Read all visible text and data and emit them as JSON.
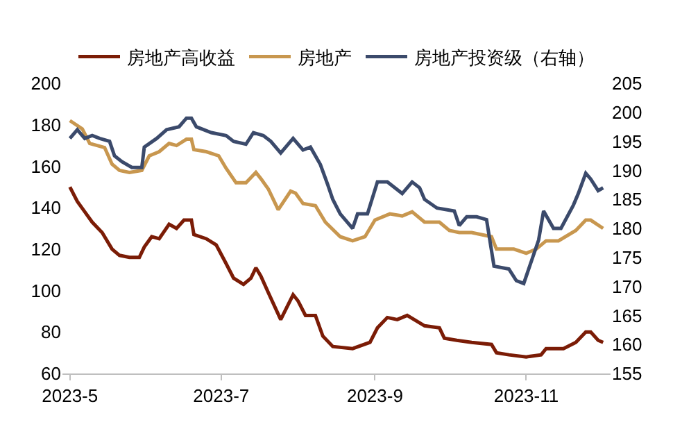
{
  "chart_data": {
    "type": "line",
    "legend": "top",
    "marker": "none",
    "line_style": "solid",
    "xlim": [
      "2023-04-28",
      "2023-12-05"
    ],
    "xticks": [
      {
        "value": "2023-05-01",
        "label": "2023-5"
      },
      {
        "value": "2023-07-01",
        "label": "2023-7"
      },
      {
        "value": "2023-09-01",
        "label": "2023-9"
      },
      {
        "value": "2023-11-01",
        "label": "2023-11"
      }
    ],
    "ylim": [
      60,
      200
    ],
    "yticks": [
      60,
      80,
      100,
      120,
      140,
      160,
      180,
      200
    ],
    "y2lim": [
      155,
      205
    ],
    "y2ticks": [
      155,
      160,
      165,
      170,
      175,
      180,
      185,
      190,
      195,
      200,
      205
    ],
    "series": [
      {
        "name": "房地产高收益",
        "color": "#7b1c06",
        "x": [
          "2023-05-01",
          "2023-05-04",
          "2023-05-07",
          "2023-05-10",
          "2023-05-14",
          "2023-05-18",
          "2023-05-21",
          "2023-05-25",
          "2023-05-29",
          "2023-05-31",
          "2023-06-03",
          "2023-06-06",
          "2023-06-10",
          "2023-06-13",
          "2023-06-16",
          "2023-06-19",
          "2023-06-20",
          "2023-06-25",
          "2023-06-29",
          "2023-07-03",
          "2023-07-06",
          "2023-07-10",
          "2023-07-13",
          "2023-07-15",
          "2023-07-17",
          "2023-07-20",
          "2023-07-25",
          "2023-07-30",
          "2023-08-01",
          "2023-08-04",
          "2023-08-08",
          "2023-08-11",
          "2023-08-15",
          "2023-08-23",
          "2023-08-30",
          "2023-09-02",
          "2023-09-06",
          "2023-09-10",
          "2023-09-14",
          "2023-09-21",
          "2023-09-27",
          "2023-09-29",
          "2023-10-04",
          "2023-10-10",
          "2023-10-18",
          "2023-10-20",
          "2023-10-25",
          "2023-11-01",
          "2023-11-07",
          "2023-11-09",
          "2023-11-16",
          "2023-11-21",
          "2023-11-25",
          "2023-11-27",
          "2023-11-30",
          "2023-12-02"
        ],
        "values": [
          150,
          143,
          138,
          133,
          128,
          120,
          117,
          116,
          116,
          121,
          126,
          125,
          132,
          130,
          134,
          134,
          127,
          125,
          122,
          113,
          106,
          103,
          106,
          111,
          107,
          99,
          86,
          98,
          95,
          88,
          88,
          78,
          73,
          72,
          75,
          82,
          87,
          86,
          88,
          83,
          82,
          77,
          76,
          75,
          74,
          70,
          69,
          68,
          69,
          72,
          72,
          75,
          80,
          80,
          76,
          75
        ]
      },
      {
        "name": "房地产",
        "color": "#c8974f",
        "x": [
          "2023-05-01",
          "2023-05-06",
          "2023-05-09",
          "2023-05-15",
          "2023-05-18",
          "2023-05-21",
          "2023-05-25",
          "2023-05-30",
          "2023-06-02",
          "2023-06-06",
          "2023-06-10",
          "2023-06-13",
          "2023-06-17",
          "2023-06-19",
          "2023-06-20",
          "2023-06-25",
          "2023-06-30",
          "2023-07-03",
          "2023-07-07",
          "2023-07-11",
          "2023-07-15",
          "2023-07-17",
          "2023-07-20",
          "2023-07-24",
          "2023-07-29",
          "2023-07-31",
          "2023-08-03",
          "2023-08-08",
          "2023-08-12",
          "2023-08-18",
          "2023-08-23",
          "2023-08-28",
          "2023-09-01",
          "2023-09-07",
          "2023-09-12",
          "2023-09-16",
          "2023-09-21",
          "2023-09-27",
          "2023-10-01",
          "2023-10-05",
          "2023-10-10",
          "2023-10-18",
          "2023-10-20",
          "2023-10-27",
          "2023-11-01",
          "2023-11-05",
          "2023-11-09",
          "2023-11-14",
          "2023-11-21",
          "2023-11-25",
          "2023-11-27",
          "2023-12-02"
        ],
        "values": [
          182,
          178,
          171,
          169,
          161,
          158,
          157,
          158,
          165,
          167,
          171,
          170,
          173,
          173,
          168,
          167,
          165,
          159,
          152,
          152,
          157,
          154,
          149,
          139,
          148,
          147,
          142,
          141,
          133,
          126,
          124,
          126,
          134,
          137,
          136,
          138,
          133,
          133,
          129,
          128,
          128,
          126,
          120,
          120,
          118,
          120,
          124,
          124,
          129,
          134,
          134,
          130
        ]
      },
      {
        "name": "房地产投资级（右轴）",
        "color": "#3b4a6b",
        "axis": "y2",
        "x": [
          "2023-05-01",
          "2023-05-04",
          "2023-05-07",
          "2023-05-10",
          "2023-05-13",
          "2023-05-17",
          "2023-05-19",
          "2023-05-22",
          "2023-05-26",
          "2023-05-30",
          "2023-05-31",
          "2023-06-05",
          "2023-06-09",
          "2023-06-14",
          "2023-06-17",
          "2023-06-19",
          "2023-06-21",
          "2023-06-27",
          "2023-07-03",
          "2023-07-06",
          "2023-07-11",
          "2023-07-14",
          "2023-07-18",
          "2023-07-21",
          "2023-07-25",
          "2023-07-30",
          "2023-08-03",
          "2023-08-06",
          "2023-08-10",
          "2023-08-13",
          "2023-08-15",
          "2023-08-18",
          "2023-08-23",
          "2023-08-25",
          "2023-08-29",
          "2023-09-02",
          "2023-09-06",
          "2023-09-12",
          "2023-09-16",
          "2023-09-19",
          "2023-09-21",
          "2023-09-26",
          "2023-10-03",
          "2023-10-05",
          "2023-10-08",
          "2023-10-12",
          "2023-10-16",
          "2023-10-19",
          "2023-10-25",
          "2023-10-28",
          "2023-10-31",
          "2023-11-06",
          "2023-11-08",
          "2023-11-12",
          "2023-11-15",
          "2023-11-20",
          "2023-11-22",
          "2023-11-25",
          "2023-11-27",
          "2023-11-30",
          "2023-12-02"
        ],
        "values": [
          195.5,
          197,
          195.5,
          196,
          195.5,
          195,
          192.5,
          191.5,
          190.5,
          190.5,
          194,
          195.5,
          197,
          197.5,
          199,
          199,
          197.5,
          196.5,
          196,
          195,
          194.5,
          196.5,
          196,
          195,
          193,
          195.5,
          193.5,
          194,
          191,
          187.5,
          185,
          182.5,
          180,
          182.5,
          182.5,
          188,
          188,
          186,
          188,
          187,
          185,
          183.5,
          183,
          180.5,
          182,
          182,
          181.5,
          173.5,
          173,
          171,
          170.5,
          178,
          183,
          180,
          180,
          184,
          186,
          189.5,
          188.5,
          186.5,
          187
        ]
      }
    ]
  }
}
